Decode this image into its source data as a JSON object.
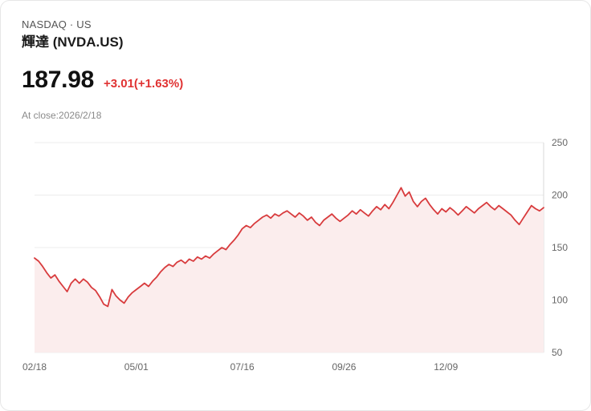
{
  "header": {
    "exchange": "NASDAQ · US",
    "name": "輝達 (NVDA.US)"
  },
  "quote": {
    "price": "187.98",
    "change": "+3.01(+1.63%)",
    "close_info": "At close:2026/2/18"
  },
  "colors": {
    "line": "#d83b3d",
    "area": "#fbeded",
    "change_text": "#e03232",
    "grid": "#ececec",
    "right_border": "#d9d9d9",
    "axis_text": "#666666"
  },
  "chart_data": {
    "type": "area",
    "title": "NVDA.US 1-year price",
    "ylim": [
      50,
      250
    ],
    "y_ticks": [
      250,
      200,
      150,
      100,
      50
    ],
    "x_ticks": [
      {
        "label": "02/18",
        "index": 0
      },
      {
        "label": "05/01",
        "index": 25
      },
      {
        "label": "07/16",
        "index": 51
      },
      {
        "label": "09/26",
        "index": 76
      },
      {
        "label": "12/09",
        "index": 101
      }
    ],
    "values": [
      140,
      137,
      132,
      126,
      121,
      124,
      118,
      113,
      108,
      116,
      120,
      116,
      120,
      117,
      112,
      109,
      103,
      96,
      94,
      110,
      104,
      100,
      97,
      103,
      107,
      110,
      113,
      116,
      113,
      118,
      122,
      127,
      131,
      134,
      132,
      136,
      138,
      135,
      139,
      137,
      141,
      139,
      142,
      140,
      144,
      147,
      150,
      148,
      153,
      157,
      162,
      168,
      171,
      169,
      173,
      176,
      179,
      181,
      178,
      182,
      180,
      183,
      185,
      182,
      179,
      183,
      180,
      176,
      179,
      174,
      171,
      176,
      179,
      182,
      178,
      175,
      178,
      181,
      185,
      182,
      186,
      183,
      180,
      185,
      189,
      186,
      191,
      187,
      193,
      200,
      207,
      199,
      203,
      194,
      189,
      194,
      197,
      191,
      186,
      182,
      187,
      184,
      188,
      185,
      181,
      185,
      189,
      186,
      183,
      187,
      190,
      193,
      189,
      186,
      190,
      187,
      184,
      181,
      176,
      172,
      178,
      184,
      190,
      187,
      185,
      188
    ]
  }
}
